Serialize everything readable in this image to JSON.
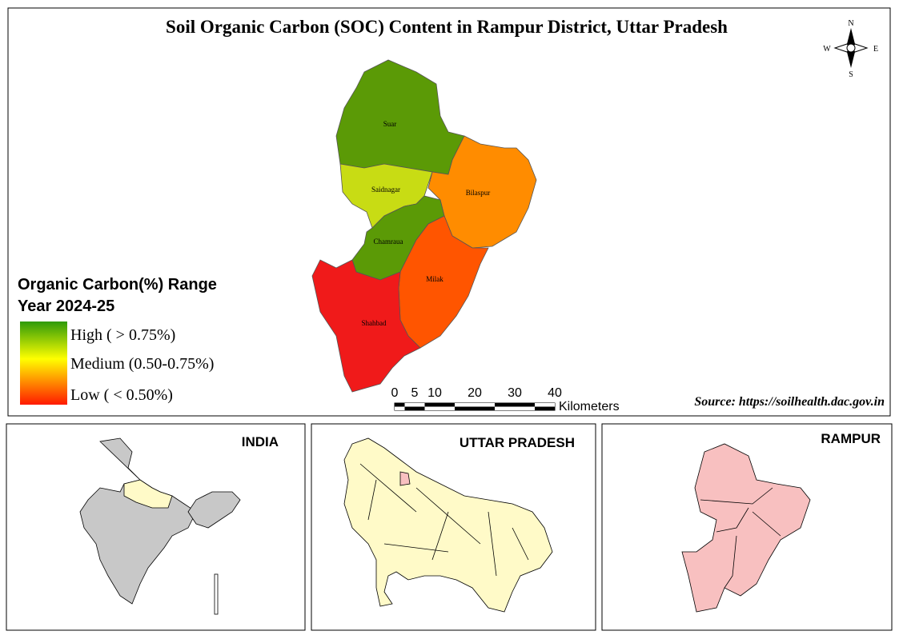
{
  "title": "Soil Organic Carbon (SOC) Content in Rampur District, Uttar Pradesh",
  "compass": {
    "n": "N",
    "s": "S",
    "e": "E",
    "w": "W"
  },
  "regions": [
    {
      "label": "Suar",
      "color": "#5b9a06"
    },
    {
      "label": "Saidnagar",
      "color": "#c8dc14"
    },
    {
      "label": "Bilaspur",
      "color": "#ff8c00"
    },
    {
      "label": "Chamraua",
      "color": "#5b9a06"
    },
    {
      "label": "Milak",
      "color": "#ff5500"
    },
    {
      "label": "Shahbad",
      "color": "#f01a1a"
    }
  ],
  "legend": {
    "title": "Organic Carbon(%) Range",
    "subtitle": "Year 2024-25",
    "items": [
      "High ( > 0.75%)",
      "Medium  (0.50-0.75%)",
      "Low ( < 0.50%)"
    ]
  },
  "scale_bar": {
    "ticks": [
      0,
      5,
      10,
      20,
      30,
      40
    ],
    "unit": "Kilometers"
  },
  "source": "Source: https://soilhealth.dac.gov.in",
  "insets": [
    "INDIA",
    "UTTAR PRADESH",
    "RAMPUR"
  ]
}
